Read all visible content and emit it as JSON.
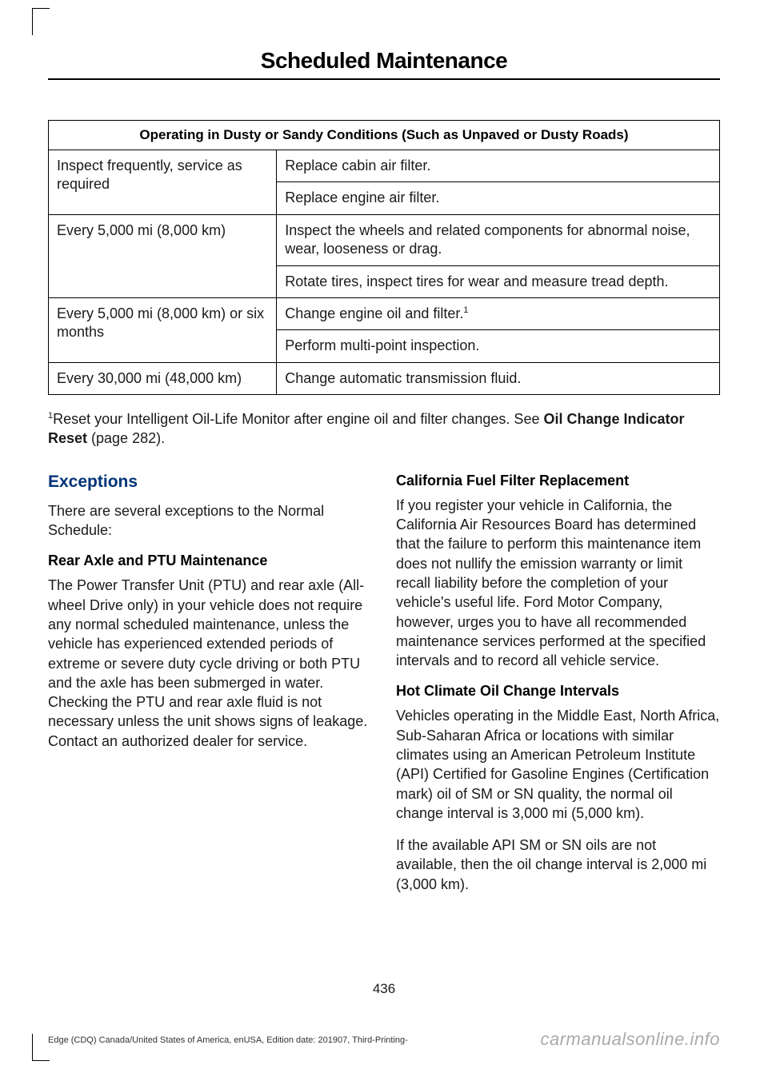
{
  "pageTitle": "Scheduled Maintenance",
  "table": {
    "header": "Operating in Dusty or Sandy Conditions (Such as Unpaved or Dusty Roads)",
    "rows": [
      {
        "c1": "Inspect frequently, service as required",
        "c2": "Replace cabin air filter.",
        "rowspan": 2
      },
      {
        "c2": "Replace engine air filter."
      },
      {
        "c1": "Every 5,000 mi (8,000 km)",
        "c2": "Inspect the wheels and related components for abnormal noise, wear, looseness or drag.",
        "rowspan": 2
      },
      {
        "c2": "Rotate tires, inspect tires for wear and measure tread depth."
      },
      {
        "c1": "Every 5,000 mi (8,000 km) or six months",
        "c2": "Change engine oil and filter.",
        "sup": "1",
        "rowspan": 2
      },
      {
        "c2": "Perform multi-point inspection."
      },
      {
        "c1": "Every 30,000 mi (48,000 km)",
        "c2": "Change automatic transmission fluid."
      }
    ]
  },
  "footnote": {
    "sup": "1",
    "textA": "Reset your Intelligent Oil-Life Monitor after engine oil and filter changes.  See ",
    "bold1": "Oil Change Indicator Reset",
    "textB": " (page 282)."
  },
  "left": {
    "h2": "Exceptions",
    "p1": "There are several exceptions to the Normal Schedule:",
    "h3": "Rear Axle and PTU Maintenance",
    "p2": "The Power Transfer Unit (PTU) and rear axle (All-wheel Drive only) in your vehicle does not require any normal scheduled maintenance, unless the vehicle has experienced extended periods of extreme or severe duty cycle driving or both PTU and the axle has been submerged in water. Checking the PTU and rear axle fluid is not necessary unless the unit shows signs of leakage. Contact an authorized dealer for service."
  },
  "right": {
    "h3a": "California Fuel Filter Replacement",
    "p1": "If you register your vehicle in California, the California Air Resources Board has determined that the failure to perform this maintenance item does not nullify the emission warranty or limit recall liability before the completion of your vehicle's useful life. Ford Motor Company, however, urges you to have all recommended maintenance services performed at the specified intervals and to record all vehicle service.",
    "h3b": "Hot Climate Oil Change Intervals",
    "p2": "Vehicles operating in the Middle East, North Africa, Sub-Saharan Africa or locations with similar climates using an American Petroleum Institute (API) Certified for Gasoline Engines (Certification mark) oil of SM or SN quality, the normal oil change interval is 3,000 mi (5,000 km).",
    "p3": "If the available API SM or SN oils are not available, then the oil change interval is 2,000 mi (3,000 km)."
  },
  "pageNumber": "436",
  "footerLeft": "Edge (CDQ) Canada/United States of America, enUSA, Edition date: 201907, Third-Printing-",
  "footerRight": "carmanualsonline.info"
}
